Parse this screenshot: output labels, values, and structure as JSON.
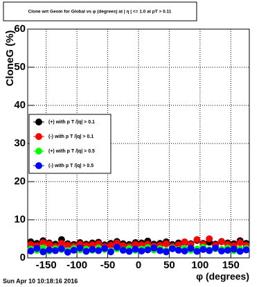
{
  "chart_data": {
    "type": "scatter",
    "title": "Clone wrt Geom for Global vs φ (degrees) at | η | <= 1.0 at pT > 0.11",
    "x_label": "φ (degrees)",
    "y_label": "CloneG (%)",
    "timestamp": "Sun Apr 10 10:18:16 2016",
    "x": [
      -175,
      -165,
      -155,
      -145,
      -135,
      -125,
      -115,
      -105,
      -95,
      -85,
      -75,
      -65,
      -55,
      -45,
      -35,
      -25,
      -15,
      -5,
      5,
      15,
      25,
      35,
      45,
      55,
      65,
      75,
      85,
      95,
      105,
      115,
      125,
      135,
      145,
      155,
      165,
      175
    ],
    "series": [
      {
        "name": "(+) with p T /|q| > 0.1",
        "color": "#000000",
        "values": [
          4.2,
          3.8,
          4.5,
          3.9,
          3.6,
          4.8,
          3.7,
          3.5,
          4.0,
          3.6,
          3.9,
          4.1,
          3.4,
          3.8,
          4.3,
          3.7,
          3.5,
          4.0,
          3.9,
          4.4,
          3.6,
          3.8,
          4.2,
          3.5,
          3.9,
          4.0,
          3.7,
          4.6,
          3.8,
          4.1,
          3.6,
          4.3,
          3.9,
          3.7,
          4.5,
          3.8
        ]
      },
      {
        "name": "(-) with p T /|q| > 0.1",
        "color": "#ff0000",
        "values": [
          3.5,
          3.2,
          4.0,
          3.6,
          3.0,
          3.8,
          3.3,
          3.1,
          3.6,
          3.2,
          3.4,
          3.7,
          3.0,
          3.3,
          3.9,
          3.2,
          3.0,
          3.5,
          3.4,
          3.6,
          3.1,
          3.3,
          3.7,
          3.0,
          3.4,
          4.2,
          3.5,
          4.8,
          3.6,
          5.0,
          3.3,
          4.2,
          3.5,
          3.2,
          4.0,
          3.3
        ]
      },
      {
        "name": "(+) with p T /|q| > 0.5",
        "color": "#00ff00",
        "values": [
          2.3,
          2.0,
          2.6,
          1.8,
          2.4,
          2.2,
          1.9,
          2.5,
          2.1,
          2.3,
          2.0,
          2.6,
          2.2,
          1.8,
          2.4,
          2.1,
          2.5,
          2.0,
          2.3,
          2.7,
          2.1,
          2.4,
          1.9,
          2.6,
          2.2,
          2.5,
          2.0,
          2.3,
          2.8,
          2.1,
          2.4,
          2.2,
          2.6,
          1.9,
          2.3,
          2.5
        ]
      },
      {
        "name": "(-) with p T /|q| > 0.5",
        "color": "#0000ff",
        "values": [
          1.8,
          2.5,
          1.6,
          2.1,
          1.9,
          2.4,
          1.5,
          2.0,
          2.6,
          1.7,
          2.2,
          1.9,
          2.5,
          1.6,
          2.8,
          2.0,
          1.7,
          2.3,
          1.8,
          2.1,
          2.6,
          1.9,
          1.6,
          2.4,
          2.0,
          1.8,
          2.5,
          1.7,
          2.2,
          1.9,
          2.6,
          1.8,
          2.0,
          2.3,
          1.7,
          2.1
        ]
      }
    ],
    "xlim": [
      -180,
      180
    ],
    "xticks": [
      -150,
      -100,
      -50,
      0,
      50,
      100,
      150
    ],
    "ylim": [
      0,
      60
    ],
    "yticks": [
      0,
      10,
      20,
      30,
      40,
      50,
      60
    ],
    "grid": true,
    "legend": "left"
  }
}
